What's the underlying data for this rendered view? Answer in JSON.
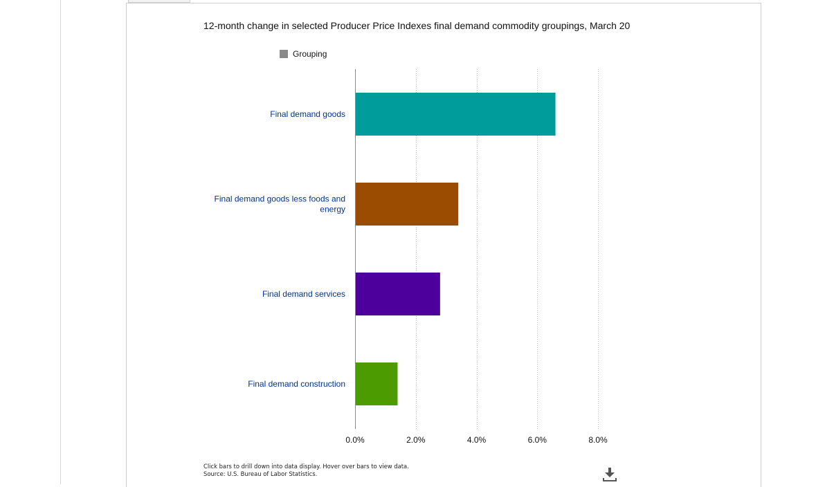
{
  "chart_data": {
    "type": "bar",
    "orientation": "horizontal",
    "title": "12-month change in selected Producer Price Indexes final demand commodity groupings, March 20",
    "legend": {
      "label": "Grouping",
      "color": "#8a8a8a",
      "position": "top-left"
    },
    "categories": [
      [
        "Final demand goods"
      ],
      [
        "Final demand goods less foods and",
        "energy"
      ],
      [
        "Final demand services"
      ],
      [
        "Final demand construction"
      ]
    ],
    "values": [
      6.6,
      3.4,
      2.8,
      1.4
    ],
    "colors": [
      "#009b9b",
      "#9b4c00",
      "#4d009b",
      "#4c9b00"
    ],
    "xlim": [
      0,
      8
    ],
    "xticks": [
      0,
      2,
      4,
      6,
      8
    ],
    "xtick_labels": [
      "0.0%",
      "2.0%",
      "4.0%",
      "6.0%",
      "8.0%"
    ],
    "grid": true
  },
  "footer": {
    "line1": "Click bars to drill down into data display. Hover over bars to view data.",
    "line2": "Source: U.S. Bureau of Labor Statistics."
  },
  "icons": {
    "download": "download-icon"
  },
  "colors": {
    "category_label": "#003399",
    "axis": "#888888",
    "grid": "#bdbdbd"
  }
}
